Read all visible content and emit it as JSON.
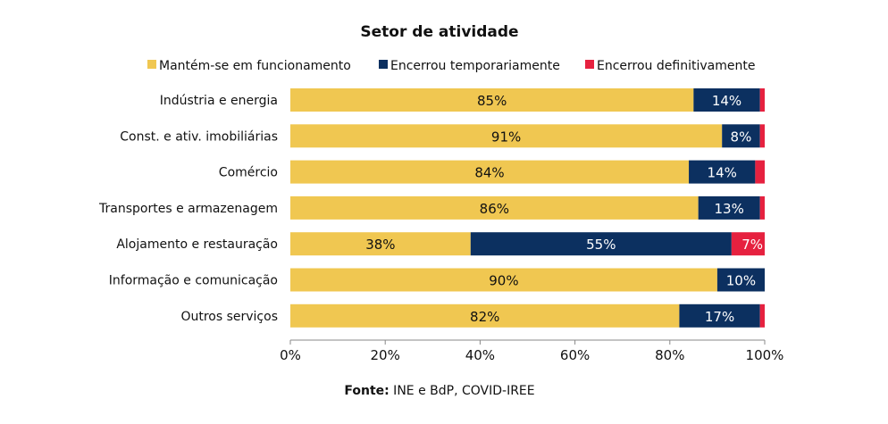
{
  "chart_data": {
    "type": "bar",
    "orientation": "horizontal",
    "stacked": true,
    "title": "Setor de atividade",
    "categories": [
      "Indústria e energia",
      "Const. e ativ. imobiliárias",
      "Comércio",
      "Transportes e armazenagem",
      "Alojamento e restauração",
      "Informação e comunicação",
      "Outros serviços"
    ],
    "series": [
      {
        "name": "Mantém-se em funcionamento",
        "color": "#F0C751",
        "values": [
          85,
          91,
          84,
          86,
          38,
          90,
          82
        ],
        "labels": [
          "85%",
          "91%",
          "84%",
          "86%",
          "38%",
          "90%",
          "82%"
        ]
      },
      {
        "name": "Encerrou temporariamente",
        "color": "#0C3060",
        "values": [
          14,
          8,
          14,
          13,
          55,
          10,
          17
        ],
        "labels": [
          "14%",
          "8%",
          "14%",
          "13%",
          "55%",
          "10%",
          "17%"
        ]
      },
      {
        "name": "Encerrou definitivamente",
        "color": "#E6213F",
        "values": [
          1,
          1,
          2,
          1,
          7,
          0,
          1
        ],
        "labels": [
          "",
          "",
          "",
          "",
          "7%",
          "",
          ""
        ]
      }
    ],
    "xlim": [
      0,
      100
    ],
    "xticks": [
      "0%",
      "20%",
      "40%",
      "60%",
      "80%",
      "100%"
    ],
    "grid": false,
    "legend": "top",
    "source_label": "Fonte:",
    "source_text": " INE e BdP, COVID-IREE"
  }
}
